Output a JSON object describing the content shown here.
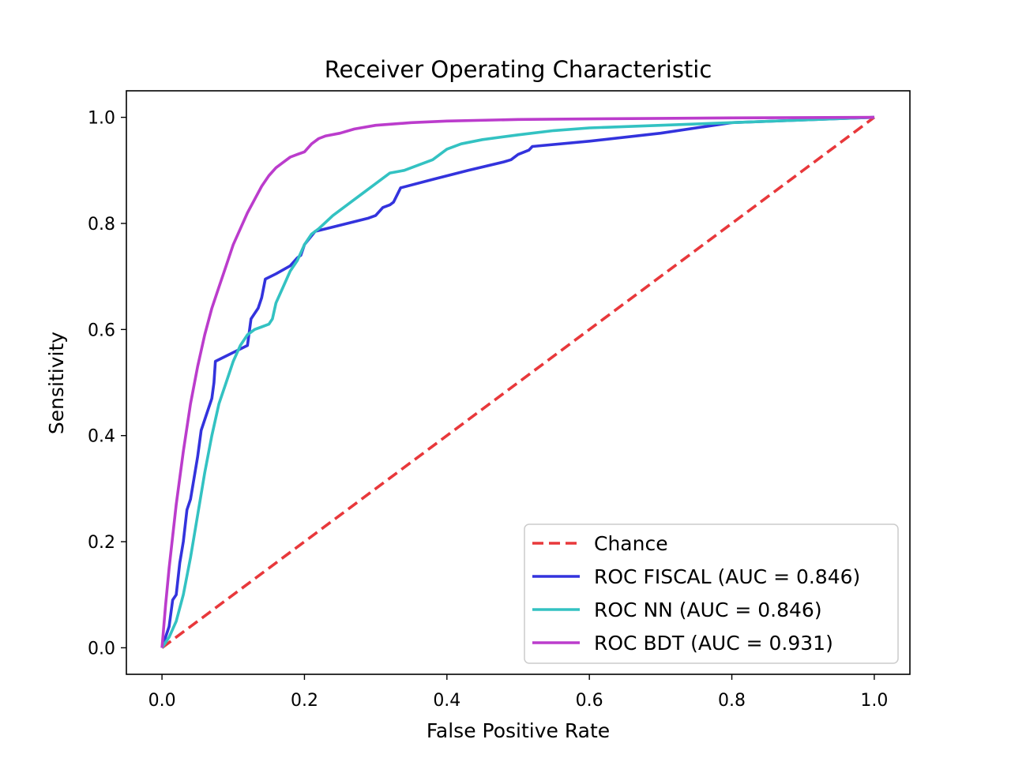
{
  "chart_data": {
    "type": "line",
    "title": "Receiver Operating Characteristic",
    "xlabel": "False Positive Rate",
    "ylabel": "Sensitivity",
    "xlim": [
      -0.05,
      1.05
    ],
    "ylim": [
      -0.05,
      1.05
    ],
    "xticks": [
      0.0,
      0.2,
      0.4,
      0.6,
      0.8,
      1.0
    ],
    "yticks": [
      0.0,
      0.2,
      0.4,
      0.6,
      0.8,
      1.0
    ],
    "xtick_labels": [
      "0.0",
      "0.2",
      "0.4",
      "0.6",
      "0.8",
      "1.0"
    ],
    "ytick_labels": [
      "0.0",
      "0.2",
      "0.4",
      "0.6",
      "0.8",
      "1.0"
    ],
    "grid": false,
    "legend_position": "lower-right",
    "series": [
      {
        "name": "Chance",
        "color": "#e8383b",
        "dashed": true,
        "x": [
          0.0,
          1.0
        ],
        "y": [
          0.0,
          1.0
        ]
      },
      {
        "name": "ROC FISCAL (AUC = 0.846)",
        "color": "#3333dd",
        "dashed": false,
        "x": [
          0.0,
          0.005,
          0.01,
          0.015,
          0.02,
          0.025,
          0.03,
          0.035,
          0.04,
          0.045,
          0.05,
          0.055,
          0.06,
          0.065,
          0.07,
          0.073,
          0.075,
          0.09,
          0.105,
          0.12,
          0.125,
          0.135,
          0.14,
          0.145,
          0.16,
          0.18,
          0.19,
          0.195,
          0.2,
          0.215,
          0.23,
          0.26,
          0.29,
          0.3,
          0.31,
          0.32,
          0.325,
          0.335,
          0.38,
          0.43,
          0.48,
          0.49,
          0.5,
          0.515,
          0.52,
          0.6,
          0.7,
          0.8,
          0.9,
          1.0
        ],
        "y": [
          0.0,
          0.02,
          0.04,
          0.09,
          0.1,
          0.16,
          0.2,
          0.26,
          0.28,
          0.32,
          0.36,
          0.41,
          0.43,
          0.45,
          0.47,
          0.5,
          0.54,
          0.55,
          0.56,
          0.57,
          0.62,
          0.64,
          0.66,
          0.695,
          0.705,
          0.72,
          0.735,
          0.74,
          0.76,
          0.785,
          0.79,
          0.8,
          0.81,
          0.815,
          0.83,
          0.835,
          0.84,
          0.867,
          0.883,
          0.9,
          0.916,
          0.92,
          0.93,
          0.938,
          0.945,
          0.955,
          0.97,
          0.99,
          0.995,
          1.0
        ]
      },
      {
        "name": "ROC NN (AUC = 0.846)",
        "color": "#33c2c2",
        "dashed": false,
        "x": [
          0.0,
          0.01,
          0.02,
          0.03,
          0.04,
          0.05,
          0.06,
          0.07,
          0.08,
          0.09,
          0.1,
          0.11,
          0.12,
          0.13,
          0.14,
          0.15,
          0.155,
          0.16,
          0.17,
          0.18,
          0.19,
          0.2,
          0.21,
          0.22,
          0.24,
          0.26,
          0.28,
          0.3,
          0.32,
          0.34,
          0.36,
          0.38,
          0.4,
          0.42,
          0.45,
          0.5,
          0.55,
          0.6,
          0.7,
          0.8,
          0.9,
          1.0
        ],
        "y": [
          0.0,
          0.02,
          0.05,
          0.1,
          0.17,
          0.25,
          0.33,
          0.4,
          0.46,
          0.5,
          0.54,
          0.57,
          0.59,
          0.6,
          0.605,
          0.61,
          0.62,
          0.65,
          0.68,
          0.71,
          0.73,
          0.76,
          0.78,
          0.79,
          0.815,
          0.835,
          0.855,
          0.875,
          0.895,
          0.9,
          0.91,
          0.92,
          0.94,
          0.95,
          0.958,
          0.967,
          0.975,
          0.98,
          0.985,
          0.99,
          0.995,
          1.0
        ]
      },
      {
        "name": "ROC BDT (AUC = 0.931)",
        "color": "#bb3ccc",
        "dashed": false,
        "x": [
          0.0,
          0.005,
          0.01,
          0.02,
          0.03,
          0.04,
          0.05,
          0.06,
          0.07,
          0.08,
          0.09,
          0.1,
          0.11,
          0.12,
          0.13,
          0.14,
          0.15,
          0.16,
          0.17,
          0.18,
          0.19,
          0.2,
          0.21,
          0.22,
          0.23,
          0.25,
          0.27,
          0.3,
          0.35,
          0.4,
          0.5,
          0.6,
          0.7,
          0.8,
          0.9,
          1.0
        ],
        "y": [
          0.0,
          0.08,
          0.15,
          0.27,
          0.37,
          0.46,
          0.53,
          0.59,
          0.64,
          0.68,
          0.72,
          0.76,
          0.79,
          0.82,
          0.845,
          0.87,
          0.89,
          0.905,
          0.915,
          0.925,
          0.93,
          0.935,
          0.95,
          0.96,
          0.965,
          0.97,
          0.978,
          0.985,
          0.99,
          0.993,
          0.996,
          0.997,
          0.998,
          0.999,
          0.9995,
          1.0
        ]
      }
    ]
  }
}
